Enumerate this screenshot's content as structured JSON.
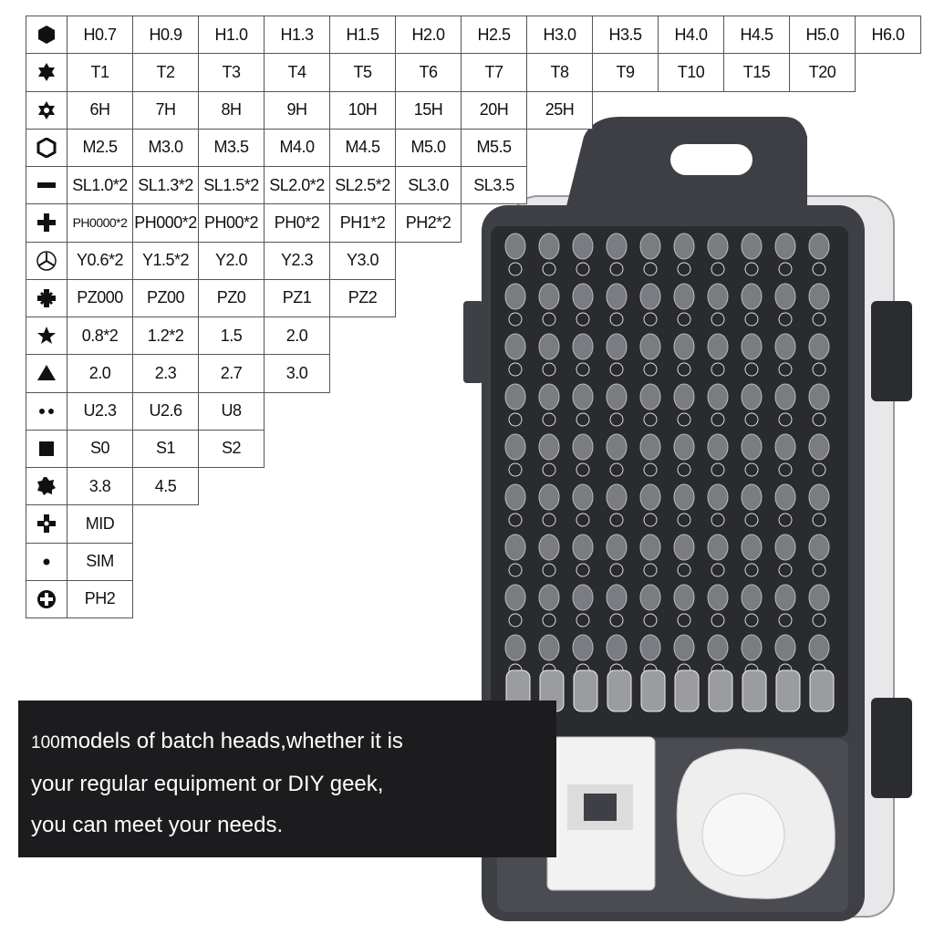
{
  "table": {
    "rows": [
      [
        "H0.7",
        "H0.9",
        "H1.0",
        "H1.3",
        "H1.5",
        "H2.0",
        "H2.5",
        "H3.0",
        "H3.5",
        "H4.0",
        "H4.5",
        "H5.0",
        "H6.0"
      ],
      [
        "T1",
        "T2",
        "T3",
        "T4",
        "T5",
        "T6",
        "T7",
        "T8",
        "T9",
        "T10",
        "T15",
        "T20"
      ],
      [
        "6H",
        "7H",
        "8H",
        "9H",
        "10H",
        "15H",
        "20H",
        "25H"
      ],
      [
        "M2.5",
        "M3.0",
        "M3.5",
        "M4.0",
        "M4.5",
        "M5.0",
        "M5.5"
      ],
      [
        "SL1.0*2",
        "SL1.3*2",
        "SL1.5*2",
        "SL2.0*2",
        "SL2.5*2",
        "SL3.0",
        "SL3.5"
      ],
      [
        "PH0000*2",
        "PH000*2",
        "PH00*2",
        "PH0*2",
        "PH1*2",
        "PH2*2"
      ],
      [
        "Y0.6*2",
        "Y1.5*2",
        "Y2.0",
        "Y2.3",
        "Y3.0"
      ],
      [
        "PZ000",
        "PZ00",
        "PZ0",
        "PZ1",
        "PZ2"
      ],
      [
        "0.8*2",
        "1.2*2",
        "1.5",
        "2.0"
      ],
      [
        "2.0",
        "2.3",
        "2.7",
        "3.0"
      ],
      [
        "U2.3",
        "U2.6",
        "U8"
      ],
      [
        "S0",
        "S1",
        "S2"
      ],
      [
        "3.8",
        "4.5"
      ],
      [
        "MID"
      ],
      [
        "SIM"
      ],
      [
        "PH2"
      ]
    ]
  },
  "banner": {
    "count": "100",
    "lines": [
      "models of batch heads,whether it is",
      "your regular equipment or DIY geek,",
      "you can meet your needs."
    ]
  }
}
